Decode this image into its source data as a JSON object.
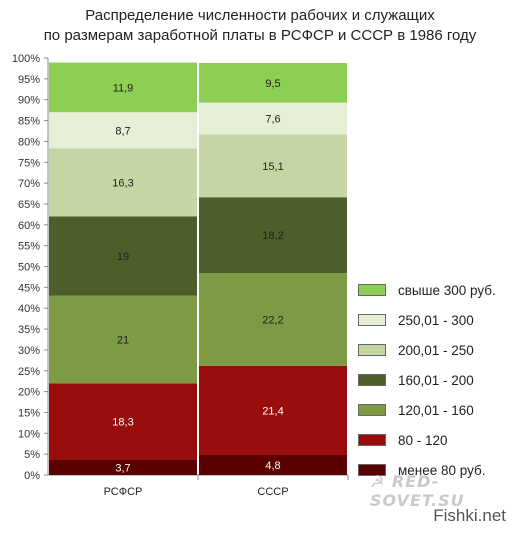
{
  "chart_data": {
    "type": "bar",
    "stacked": true,
    "percent_stacked": true,
    "title": "Распределение численности рабочих и служащих по размерам заработной платы в РСФСР и СССР в 1986 году",
    "title_lines": [
      "Распределение численности рабочих и служащих",
      "по размерам заработной платы в РСФСР и СССР в 1986 году"
    ],
    "categories": [
      "РСФСР",
      "СССР"
    ],
    "y_ticks": [
      "0%",
      "5%",
      "10%",
      "15%",
      "20%",
      "25%",
      "30%",
      "35%",
      "40%",
      "45%",
      "50%",
      "55%",
      "60%",
      "65%",
      "70%",
      "75%",
      "80%",
      "85%",
      "90%",
      "95%",
      "100%"
    ],
    "ylim": [
      0,
      100
    ],
    "legend_position": "right",
    "series": [
      {
        "name": "менее 80 руб.",
        "color": "#5a0000",
        "values": [
          3.7,
          4.8
        ]
      },
      {
        "name": "80 - 120",
        "color": "#9a0d0d",
        "values": [
          18.3,
          21.4
        ]
      },
      {
        "name": "120,01 - 160",
        "color": "#7d9a44",
        "values": [
          21,
          22.2
        ]
      },
      {
        "name": "160,01 - 200",
        "color": "#4c5e2a",
        "values": [
          19,
          18.2
        ]
      },
      {
        "name": "200,01 - 250",
        "color": "#c5d6a4",
        "values": [
          16.3,
          15.1
        ]
      },
      {
        "name": "250,01 - 300",
        "color": "#e6eed6",
        "values": [
          8.7,
          7.6
        ]
      },
      {
        "name": "свыше 300 руб.",
        "color": "#8dcf54",
        "values": [
          11.9,
          9.5
        ]
      }
    ],
    "data_labels": [
      [
        "3,7",
        "4,8"
      ],
      [
        "18,3",
        "21,4"
      ],
      [
        "21",
        "22,2"
      ],
      [
        "19",
        "18,2"
      ],
      [
        "16,3",
        "15,1"
      ],
      [
        "8,7",
        "7,6"
      ],
      [
        "11,9",
        "9,5"
      ]
    ],
    "label_text_colors": [
      "#ffffff",
      "#ffffff",
      "#222222",
      "#222222",
      "#222222",
      "#222222",
      "#222222"
    ]
  },
  "watermark": "☭ RED-SOVET.SU",
  "site_credit": "Fishki.net"
}
